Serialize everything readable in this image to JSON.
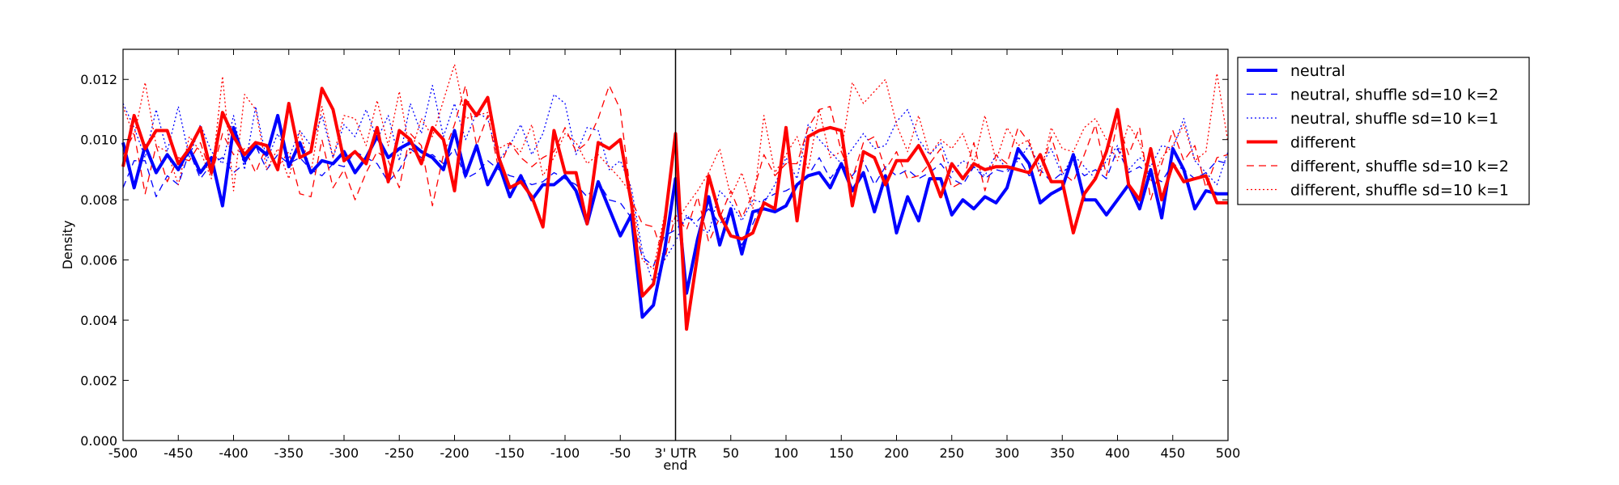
{
  "chart_data": {
    "type": "line",
    "title": "",
    "xlabel": "end",
    "ylabel": "Density",
    "xlim": [
      -500,
      500
    ],
    "ylim": [
      0,
      0.013
    ],
    "grid": false,
    "legend_placement": "outside-top-right",
    "divider_x": 0,
    "x_ticks": [
      -500,
      -450,
      -400,
      -350,
      -300,
      -250,
      -200,
      -150,
      -100,
      -50,
      0,
      50,
      100,
      150,
      200,
      250,
      300,
      350,
      400,
      450,
      500
    ],
    "x_tick_labels": [
      "-500",
      "-450",
      "-400",
      "-350",
      "-300",
      "-250",
      "-200",
      "-150",
      "-100",
      "-50",
      "3' UTR",
      "50",
      "100",
      "150",
      "200",
      "250",
      "300",
      "350",
      "400",
      "450",
      "500"
    ],
    "y_ticks": [
      0,
      0.002,
      0.004,
      0.006,
      0.008,
      0.01,
      0.012
    ],
    "y_tick_labels": [
      "0.000",
      "0.002",
      "0.004",
      "0.006",
      "0.008",
      "0.010",
      "0.012"
    ],
    "x": [
      -500,
      -490,
      -480,
      -470,
      -460,
      -450,
      -440,
      -430,
      -420,
      -410,
      -400,
      -390,
      -380,
      -370,
      -360,
      -350,
      -340,
      -330,
      -320,
      -310,
      -300,
      -290,
      -280,
      -270,
      -260,
      -250,
      -240,
      -230,
      -220,
      -210,
      -200,
      -190,
      -180,
      -170,
      -160,
      -150,
      -140,
      -130,
      -120,
      -110,
      -100,
      -90,
      -80,
      -70,
      -60,
      -50,
      -40,
      -30,
      -20,
      -10,
      0,
      10,
      20,
      30,
      40,
      50,
      60,
      70,
      80,
      90,
      100,
      110,
      120,
      130,
      140,
      150,
      160,
      170,
      180,
      190,
      200,
      210,
      220,
      230,
      240,
      250,
      260,
      270,
      280,
      290,
      300,
      310,
      320,
      330,
      340,
      350,
      360,
      370,
      380,
      390,
      400,
      410,
      420,
      430,
      440,
      450,
      460,
      470,
      480,
      490,
      500
    ],
    "series": [
      {
        "name": "neutral",
        "color": "#0000ff",
        "style": "solid",
        "width": 4,
        "values": [
          0.0099,
          0.0084,
          0.0098,
          0.0089,
          0.0095,
          0.009,
          0.0097,
          0.0089,
          0.0094,
          0.0078,
          0.0104,
          0.0093,
          0.0098,
          0.0095,
          0.0108,
          0.0091,
          0.0099,
          0.0089,
          0.0093,
          0.0092,
          0.0096,
          0.0089,
          0.0094,
          0.0101,
          0.0094,
          0.0097,
          0.0099,
          0.0096,
          0.0094,
          0.009,
          0.0103,
          0.0088,
          0.0098,
          0.0085,
          0.0092,
          0.0081,
          0.0088,
          0.008,
          0.0085,
          0.0085,
          0.0088,
          0.0083,
          0.0072,
          0.0086,
          0.0077,
          0.0068,
          0.0075,
          0.0041,
          0.0045,
          0.0063,
          0.0087,
          0.0049,
          0.0067,
          0.0081,
          0.0065,
          0.0077,
          0.0062,
          0.0076,
          0.0077,
          0.0076,
          0.0078,
          0.0085,
          0.0088,
          0.0089,
          0.0084,
          0.0092,
          0.0083,
          0.0089,
          0.0076,
          0.0088,
          0.0069,
          0.0081,
          0.0073,
          0.0087,
          0.0087,
          0.0075,
          0.008,
          0.0077,
          0.0081,
          0.0079,
          0.0084,
          0.0097,
          0.0092,
          0.0079,
          0.0082,
          0.0084,
          0.0095,
          0.008,
          0.008,
          0.0075,
          0.008,
          0.0085,
          0.0077,
          0.009,
          0.0074,
          0.0097,
          0.009,
          0.0077,
          0.0083,
          0.0082,
          0.0082
        ]
      },
      {
        "name": "neutral, shuffle sd=10 k=2",
        "color": "#0000ff",
        "style": "dashed",
        "width": 1.3,
        "values": [
          0.0084,
          0.0093,
          0.0093,
          0.0081,
          0.0088,
          0.0085,
          0.0096,
          0.0087,
          0.0092,
          0.0094,
          0.0089,
          0.0092,
          0.0098,
          0.009,
          0.0095,
          0.0092,
          0.0094,
          0.009,
          0.0088,
          0.0092,
          0.0091,
          0.0096,
          0.0094,
          0.0092,
          0.0086,
          0.009,
          0.0097,
          0.0094,
          0.0095,
          0.0092,
          0.0097,
          0.0087,
          0.0089,
          0.0093,
          0.009,
          0.0088,
          0.0087,
          0.0085,
          0.0086,
          0.0089,
          0.0087,
          0.0085,
          0.0081,
          0.0086,
          0.008,
          0.0079,
          0.0074,
          0.0061,
          0.0058,
          0.0068,
          0.007,
          0.0074,
          0.0073,
          0.0077,
          0.0072,
          0.0076,
          0.0065,
          0.0072,
          0.008,
          0.0082,
          0.0083,
          0.0085,
          0.0088,
          0.0094,
          0.0087,
          0.0092,
          0.0088,
          0.0093,
          0.0085,
          0.0091,
          0.0088,
          0.009,
          0.0087,
          0.0089,
          0.0092,
          0.0087,
          0.0085,
          0.0091,
          0.0087,
          0.009,
          0.0089,
          0.0094,
          0.0088,
          0.009,
          0.0086,
          0.0089,
          0.0092,
          0.0088,
          0.009,
          0.0087,
          0.0097,
          0.0089,
          0.0091,
          0.0088,
          0.0086,
          0.0092,
          0.009,
          0.0087,
          0.0089,
          0.0093,
          0.0092
        ]
      },
      {
        "name": "neutral, shuffle sd=10 k=1",
        "color": "#0000ff",
        "style": "dotted",
        "width": 1.3,
        "values": [
          0.0112,
          0.0104,
          0.0094,
          0.011,
          0.0096,
          0.0111,
          0.0094,
          0.0105,
          0.0096,
          0.0092,
          0.0108,
          0.009,
          0.0111,
          0.0093,
          0.0102,
          0.0094,
          0.0103,
          0.0098,
          0.0108,
          0.0094,
          0.0105,
          0.0101,
          0.011,
          0.01,
          0.0108,
          0.0093,
          0.0112,
          0.0102,
          0.0118,
          0.0101,
          0.0112,
          0.01,
          0.0109,
          0.0107,
          0.0093,
          0.0098,
          0.0105,
          0.0095,
          0.0102,
          0.0115,
          0.0112,
          0.0095,
          0.0104,
          0.0103,
          0.009,
          0.0093,
          0.0084,
          0.0063,
          0.0052,
          0.006,
          0.0066,
          0.0075,
          0.0071,
          0.0069,
          0.0083,
          0.0079,
          0.0073,
          0.008,
          0.0079,
          0.0085,
          0.0094,
          0.0087,
          0.0105,
          0.01,
          0.0096,
          0.0092,
          0.0097,
          0.0102,
          0.0097,
          0.0098,
          0.0106,
          0.011,
          0.01,
          0.0095,
          0.0099,
          0.0089,
          0.0093,
          0.0091,
          0.0088,
          0.0095,
          0.009,
          0.0093,
          0.0098,
          0.0091,
          0.0097,
          0.0088,
          0.0095,
          0.0091,
          0.0087,
          0.0093,
          0.0098,
          0.009,
          0.0094,
          0.0091,
          0.0098,
          0.0097,
          0.0107,
          0.0093,
          0.0089,
          0.0085,
          0.0096
        ]
      },
      {
        "name": "different",
        "color": "#ff0000",
        "style": "solid",
        "width": 4,
        "values": [
          0.0091,
          0.0108,
          0.0097,
          0.0103,
          0.0103,
          0.0092,
          0.0097,
          0.0104,
          0.0089,
          0.0109,
          0.0101,
          0.0095,
          0.0099,
          0.0098,
          0.009,
          0.0112,
          0.0094,
          0.0096,
          0.0117,
          0.011,
          0.0093,
          0.0096,
          0.0092,
          0.0104,
          0.0086,
          0.0103,
          0.01,
          0.0092,
          0.0104,
          0.01,
          0.0083,
          0.0113,
          0.0108,
          0.0114,
          0.0094,
          0.0084,
          0.0086,
          0.0081,
          0.0071,
          0.0103,
          0.0089,
          0.0089,
          0.0072,
          0.0099,
          0.0097,
          0.01,
          0.0079,
          0.0048,
          0.0052,
          0.0072,
          0.0102,
          0.0037,
          0.0062,
          0.0088,
          0.0075,
          0.0068,
          0.0067,
          0.0069,
          0.0079,
          0.0077,
          0.0104,
          0.0073,
          0.0101,
          0.0103,
          0.0104,
          0.0103,
          0.0078,
          0.0096,
          0.0094,
          0.0085,
          0.0093,
          0.0093,
          0.0098,
          0.0091,
          0.0081,
          0.0092,
          0.0087,
          0.0092,
          0.009,
          0.0091,
          0.0091,
          0.009,
          0.0089,
          0.0095,
          0.0086,
          0.0086,
          0.0069,
          0.0082,
          0.0087,
          0.0096,
          0.011,
          0.0085,
          0.008,
          0.0097,
          0.008,
          0.0092,
          0.0086,
          0.0087,
          0.0088,
          0.0079,
          0.0079
        ]
      },
      {
        "name": "different, shuffle sd=10 k=2",
        "color": "#ff0000",
        "style": "dashed",
        "width": 1.3,
        "values": [
          0.0095,
          0.0102,
          0.0082,
          0.0098,
          0.0086,
          0.0094,
          0.0093,
          0.0099,
          0.0088,
          0.0102,
          0.0095,
          0.0097,
          0.0089,
          0.0098,
          0.0091,
          0.0096,
          0.0082,
          0.0081,
          0.01,
          0.0084,
          0.009,
          0.008,
          0.0089,
          0.0096,
          0.0093,
          0.0084,
          0.0102,
          0.0098,
          0.0078,
          0.0095,
          0.0105,
          0.0118,
          0.0098,
          0.0108,
          0.009,
          0.0099,
          0.0094,
          0.0091,
          0.0094,
          0.0096,
          0.0104,
          0.0096,
          0.0099,
          0.0107,
          0.0118,
          0.011,
          0.008,
          0.0072,
          0.0071,
          0.006,
          0.0075,
          0.007,
          0.0081,
          0.0066,
          0.0074,
          0.0083,
          0.0074,
          0.0082,
          0.0095,
          0.0088,
          0.0092,
          0.0092,
          0.0104,
          0.011,
          0.0111,
          0.0096,
          0.0087,
          0.0099,
          0.0101,
          0.009,
          0.0096,
          0.0087,
          0.0088,
          0.0092,
          0.0097,
          0.0084,
          0.0086,
          0.0099,
          0.0083,
          0.0095,
          0.0092,
          0.0104,
          0.0099,
          0.0088,
          0.0101,
          0.0089,
          0.0086,
          0.0095,
          0.0105,
          0.0088,
          0.0106,
          0.0095,
          0.0104,
          0.008,
          0.0092,
          0.0103,
          0.0093,
          0.0098,
          0.0084,
          0.0094,
          0.0095
        ]
      },
      {
        "name": "different, shuffle sd=10 k=1",
        "color": "#ff0000",
        "style": "dotted",
        "width": 1.3,
        "values": [
          0.0111,
          0.0101,
          0.0119,
          0.0098,
          0.0096,
          0.0085,
          0.0101,
          0.0096,
          0.0087,
          0.0121,
          0.0083,
          0.0115,
          0.011,
          0.009,
          0.0097,
          0.0087,
          0.0103,
          0.0089,
          0.0111,
          0.0094,
          0.0108,
          0.0107,
          0.0098,
          0.0113,
          0.0098,
          0.0116,
          0.0095,
          0.0107,
          0.0101,
          0.0113,
          0.0125,
          0.0107,
          0.0108,
          0.0109,
          0.0097,
          0.0099,
          0.0096,
          0.0105,
          0.0088,
          0.0094,
          0.0102,
          0.0099,
          0.0092,
          0.0095,
          0.0091,
          0.0087,
          0.0082,
          0.006,
          0.0057,
          0.0075,
          0.0072,
          0.0078,
          0.0083,
          0.0089,
          0.0097,
          0.0081,
          0.0089,
          0.0077,
          0.0108,
          0.0089,
          0.0095,
          0.0101,
          0.009,
          0.011,
          0.0094,
          0.0096,
          0.0119,
          0.0112,
          0.0116,
          0.012,
          0.0105,
          0.0096,
          0.0108,
          0.0095,
          0.01,
          0.0097,
          0.0102,
          0.0092,
          0.0108,
          0.0093,
          0.0104,
          0.0098,
          0.01,
          0.0088,
          0.0104,
          0.0097,
          0.0096,
          0.0104,
          0.0107,
          0.01,
          0.0093,
          0.0105,
          0.0099,
          0.0086,
          0.0094,
          0.0098,
          0.0105,
          0.0093,
          0.0096,
          0.0122,
          0.0099
        ]
      }
    ]
  }
}
